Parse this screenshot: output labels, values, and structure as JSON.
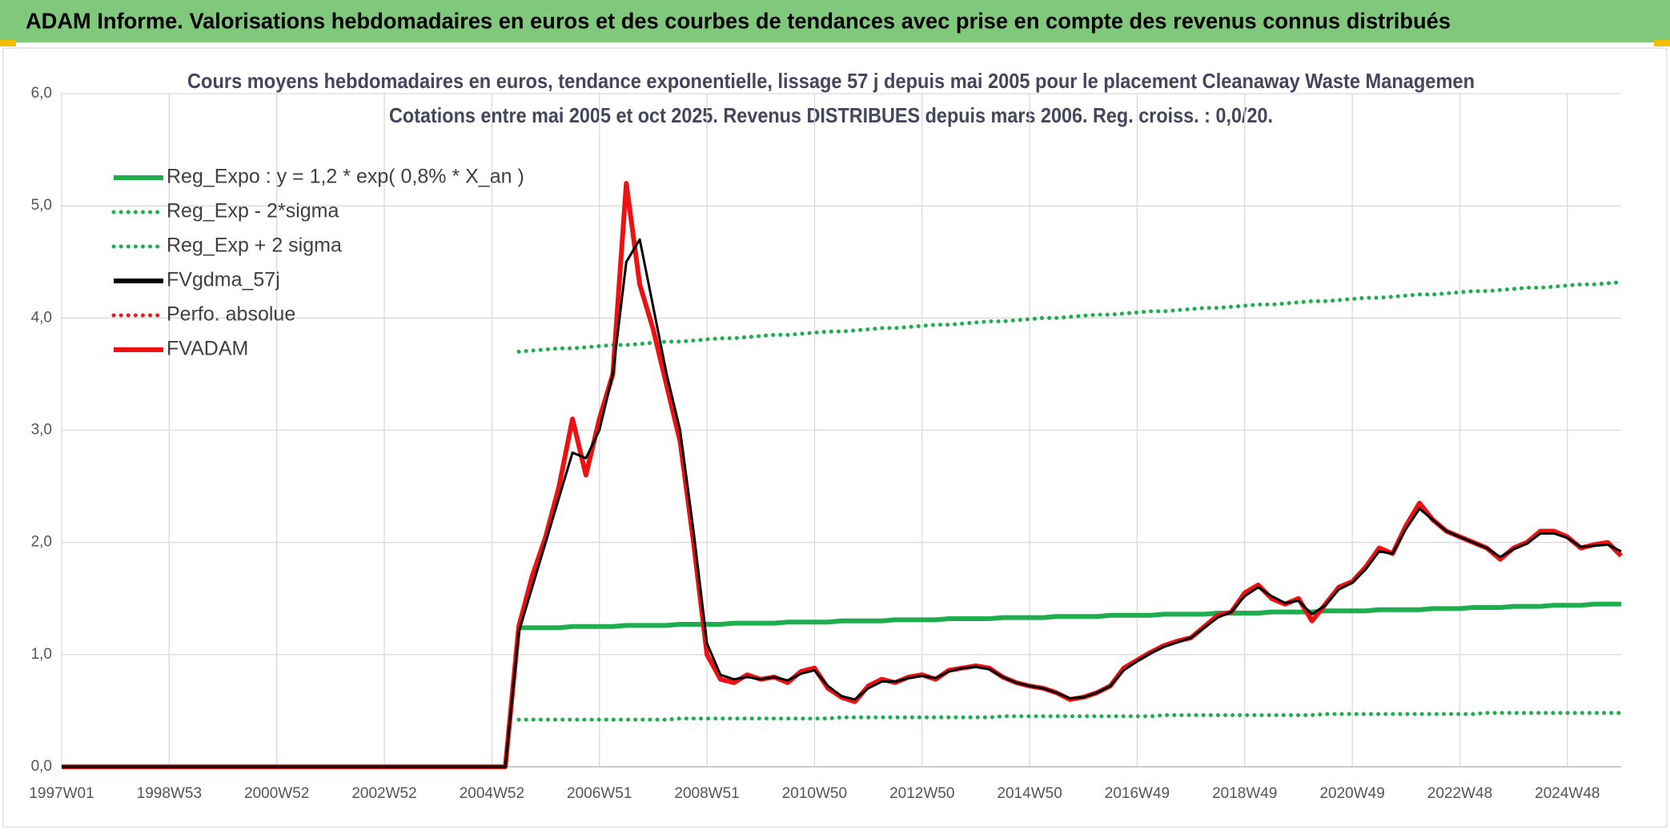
{
  "header": {
    "title": "ADAM Informe. Valorisations hebdomadaires en euros et des courbes de tendances avec prise en compte des revenus connus distribués"
  },
  "chart_data": {
    "type": "line",
    "title": "Cours moyens hebdomadaires en euros, tendance exponentielle, lissage 57 j depuis mai 2005 pour le placement Cleanaway Waste Managemen",
    "subtitle": "Cotations entre mai 2005 et oct 2025. Revenus DISTRIBUES depuis mars 2006. Reg. croiss. : 0,0/20.",
    "legend": "upper left",
    "grid": true,
    "ylim": [
      0,
      6
    ],
    "yticks": [
      {
        "value": 0,
        "label": "0,0"
      },
      {
        "value": 1,
        "label": "1,0"
      },
      {
        "value": 2,
        "label": "2,0"
      },
      {
        "value": 3,
        "label": "3,0"
      },
      {
        "value": 4,
        "label": "4,0"
      },
      {
        "value": 5,
        "label": "5,0"
      },
      {
        "value": 6,
        "label": "6,0"
      }
    ],
    "categories": [
      "1997W01",
      null,
      null,
      null,
      null,
      null,
      null,
      null,
      "1998W53",
      null,
      null,
      null,
      null,
      null,
      null,
      null,
      "2000W52",
      null,
      null,
      null,
      null,
      null,
      null,
      null,
      "2002W52",
      null,
      null,
      null,
      null,
      null,
      null,
      null,
      "2004W52",
      null,
      null,
      null,
      null,
      null,
      null,
      null,
      "2006W51",
      null,
      null,
      null,
      null,
      null,
      null,
      null,
      "2008W51",
      null,
      null,
      null,
      null,
      null,
      null,
      null,
      "2010W50",
      null,
      null,
      null,
      null,
      null,
      null,
      null,
      "2012W50",
      null,
      null,
      null,
      null,
      null,
      null,
      null,
      "2014W50",
      null,
      null,
      null,
      null,
      null,
      null,
      null,
      "2016W49",
      null,
      null,
      null,
      null,
      null,
      null,
      null,
      "2018W49",
      null,
      null,
      null,
      null,
      null,
      null,
      null,
      "2020W49",
      null,
      null,
      null,
      null,
      null,
      null,
      null,
      "2022W48",
      null,
      null,
      null,
      null,
      null,
      null,
      null,
      "2024W48",
      null,
      null,
      null,
      null
    ],
    "series": [
      {
        "name": "Reg_Expo : y = 1,2 * exp( 0,8% *  X_an )",
        "color": "#1fae4f",
        "style": "solid",
        "values": [
          null,
          null,
          null,
          null,
          null,
          null,
          null,
          null,
          null,
          null,
          null,
          null,
          null,
          null,
          null,
          null,
          null,
          null,
          null,
          null,
          null,
          null,
          null,
          null,
          null,
          null,
          null,
          null,
          null,
          null,
          null,
          null,
          null,
          null,
          1.24,
          1.24,
          1.24,
          1.24,
          1.25,
          1.25,
          1.25,
          1.25,
          1.26,
          1.26,
          1.26,
          1.26,
          1.27,
          1.27,
          1.27,
          1.27,
          1.28,
          1.28,
          1.28,
          1.28,
          1.29,
          1.29,
          1.29,
          1.29,
          1.3,
          1.3,
          1.3,
          1.3,
          1.31,
          1.31,
          1.31,
          1.31,
          1.32,
          1.32,
          1.32,
          1.32,
          1.33,
          1.33,
          1.33,
          1.33,
          1.34,
          1.34,
          1.34,
          1.34,
          1.35,
          1.35,
          1.35,
          1.35,
          1.36,
          1.36,
          1.36,
          1.36,
          1.37,
          1.37,
          1.37,
          1.37,
          1.38,
          1.38,
          1.38,
          1.38,
          1.39,
          1.39,
          1.39,
          1.39,
          1.4,
          1.4,
          1.4,
          1.4,
          1.41,
          1.41,
          1.41,
          1.42,
          1.42,
          1.42,
          1.43,
          1.43,
          1.43,
          1.44,
          1.44,
          1.44,
          1.45,
          1.45,
          1.45
        ]
      },
      {
        "name": "Reg_Exp - 2*sigma",
        "color": "#1fae4f",
        "style": "dotted",
        "values": [
          null,
          null,
          null,
          null,
          null,
          null,
          null,
          null,
          null,
          null,
          null,
          null,
          null,
          null,
          null,
          null,
          null,
          null,
          null,
          null,
          null,
          null,
          null,
          null,
          null,
          null,
          null,
          null,
          null,
          null,
          null,
          null,
          null,
          null,
          0.42,
          0.42,
          0.42,
          0.42,
          0.42,
          0.42,
          0.42,
          0.42,
          0.42,
          0.42,
          0.42,
          0.42,
          0.43,
          0.43,
          0.43,
          0.43,
          0.43,
          0.43,
          0.43,
          0.43,
          0.43,
          0.43,
          0.43,
          0.43,
          0.44,
          0.44,
          0.44,
          0.44,
          0.44,
          0.44,
          0.44,
          0.44,
          0.44,
          0.44,
          0.44,
          0.44,
          0.45,
          0.45,
          0.45,
          0.45,
          0.45,
          0.45,
          0.45,
          0.45,
          0.45,
          0.45,
          0.45,
          0.45,
          0.46,
          0.46,
          0.46,
          0.46,
          0.46,
          0.46,
          0.46,
          0.46,
          0.46,
          0.46,
          0.46,
          0.46,
          0.47,
          0.47,
          0.47,
          0.47,
          0.47,
          0.47,
          0.47,
          0.47,
          0.47,
          0.47,
          0.47,
          0.47,
          0.48,
          0.48,
          0.48,
          0.48,
          0.48,
          0.48,
          0.48,
          0.48,
          0.48,
          0.48,
          0.48
        ]
      },
      {
        "name": "Reg_Exp + 2 sigma",
        "color": "#1fae4f",
        "style": "dotted",
        "values": [
          null,
          null,
          null,
          null,
          null,
          null,
          null,
          null,
          null,
          null,
          null,
          null,
          null,
          null,
          null,
          null,
          null,
          null,
          null,
          null,
          null,
          null,
          null,
          null,
          null,
          null,
          null,
          null,
          null,
          null,
          null,
          null,
          null,
          null,
          3.7,
          3.71,
          3.72,
          3.73,
          3.73,
          3.74,
          3.75,
          3.76,
          3.76,
          3.77,
          3.78,
          3.79,
          3.79,
          3.8,
          3.81,
          3.82,
          3.82,
          3.83,
          3.84,
          3.85,
          3.85,
          3.86,
          3.87,
          3.88,
          3.88,
          3.89,
          3.9,
          3.91,
          3.91,
          3.92,
          3.93,
          3.94,
          3.94,
          3.95,
          3.96,
          3.97,
          3.97,
          3.98,
          3.99,
          4.0,
          4.0,
          4.01,
          4.02,
          4.03,
          4.03,
          4.04,
          4.05,
          4.06,
          4.06,
          4.07,
          4.08,
          4.09,
          4.09,
          4.1,
          4.11,
          4.12,
          4.12,
          4.13,
          4.14,
          4.15,
          4.15,
          4.16,
          4.17,
          4.18,
          4.18,
          4.19,
          4.2,
          4.21,
          4.21,
          4.22,
          4.23,
          4.24,
          4.24,
          4.25,
          4.26,
          4.27,
          4.27,
          4.28,
          4.29,
          4.3,
          4.3,
          4.31,
          4.32
        ]
      },
      {
        "name": "FVgdma_57j",
        "color": "#000000",
        "style": "solid",
        "values": [
          0,
          0,
          0,
          0,
          0,
          0,
          0,
          0,
          0,
          0,
          0,
          0,
          0,
          0,
          0,
          0,
          0,
          0,
          0,
          0,
          0,
          0,
          0,
          0,
          0,
          0,
          0,
          0,
          0,
          0,
          0,
          0,
          0,
          0,
          1.2,
          1.6,
          2.0,
          2.4,
          2.8,
          2.75,
          3.0,
          3.5,
          4.5,
          4.7,
          4.1,
          3.5,
          3.0,
          2.1,
          1.1,
          0.82,
          0.78,
          0.8,
          0.78,
          0.8,
          0.77,
          0.83,
          0.86,
          0.72,
          0.63,
          0.6,
          0.7,
          0.76,
          0.76,
          0.79,
          0.81,
          0.79,
          0.85,
          0.88,
          0.89,
          0.87,
          0.8,
          0.75,
          0.72,
          0.7,
          0.66,
          0.61,
          0.62,
          0.66,
          0.72,
          0.86,
          0.94,
          1.01,
          1.07,
          1.11,
          1.15,
          1.24,
          1.33,
          1.38,
          1.52,
          1.6,
          1.52,
          1.46,
          1.48,
          1.36,
          1.44,
          1.58,
          1.64,
          1.76,
          1.92,
          1.9,
          2.12,
          2.3,
          2.2,
          2.1,
          2.05,
          2.0,
          1.95,
          1.87,
          1.94,
          1.99,
          2.08,
          2.08,
          2.04,
          1.96,
          1.97,
          1.98,
          1.92
        ]
      },
      {
        "name": "Perfo. absolue",
        "color": "#e02020",
        "style": "dotted",
        "values": [
          null,
          null,
          null,
          null,
          null,
          null,
          null,
          null,
          null,
          null,
          null,
          null,
          null,
          null,
          null,
          null,
          null,
          null,
          null,
          null,
          null,
          null,
          null,
          null,
          null,
          null,
          null,
          null,
          null,
          null,
          null,
          null,
          null,
          null,
          null,
          null,
          null,
          null,
          null,
          null,
          null,
          null,
          null,
          null,
          null,
          null,
          null,
          null,
          null,
          null,
          null,
          null,
          null,
          null,
          null,
          null,
          null,
          null,
          null,
          null,
          null,
          null,
          null,
          null,
          null,
          null,
          null,
          null,
          null,
          null,
          null,
          null,
          null,
          null,
          null,
          null,
          null,
          null,
          null,
          null,
          null,
          null,
          null,
          null,
          null,
          null,
          null,
          null,
          null,
          null,
          null,
          null,
          null,
          null,
          null,
          null,
          null,
          null,
          null,
          null,
          null,
          null,
          null,
          null,
          null,
          null,
          null,
          null,
          null,
          null,
          null,
          null,
          null,
          null,
          null,
          null,
          null
        ]
      },
      {
        "name": "FVADAM",
        "color": "#ee1111",
        "style": "solid",
        "values": [
          0,
          0,
          0,
          0,
          0,
          0,
          0,
          0,
          0,
          0,
          0,
          0,
          0,
          0,
          0,
          0,
          0,
          0,
          0,
          0,
          0,
          0,
          0,
          0,
          0,
          0,
          0,
          0,
          0,
          0,
          0,
          0,
          0,
          0,
          1.25,
          1.7,
          2.05,
          2.5,
          3.1,
          2.6,
          3.1,
          3.5,
          5.2,
          4.3,
          3.9,
          3.4,
          2.9,
          2.0,
          1.0,
          0.78,
          0.75,
          0.82,
          0.78,
          0.8,
          0.75,
          0.85,
          0.88,
          0.7,
          0.62,
          0.58,
          0.72,
          0.78,
          0.75,
          0.8,
          0.82,
          0.78,
          0.86,
          0.88,
          0.9,
          0.88,
          0.8,
          0.75,
          0.72,
          0.7,
          0.66,
          0.6,
          0.62,
          0.66,
          0.72,
          0.88,
          0.95,
          1.02,
          1.08,
          1.12,
          1.15,
          1.25,
          1.35,
          1.38,
          1.55,
          1.62,
          1.5,
          1.45,
          1.5,
          1.3,
          1.45,
          1.6,
          1.65,
          1.78,
          1.95,
          1.9,
          2.15,
          2.35,
          2.2,
          2.1,
          2.05,
          2.0,
          1.95,
          1.85,
          1.95,
          2.0,
          2.1,
          2.1,
          2.05,
          1.95,
          1.98,
          2.0,
          1.88
        ]
      }
    ]
  }
}
